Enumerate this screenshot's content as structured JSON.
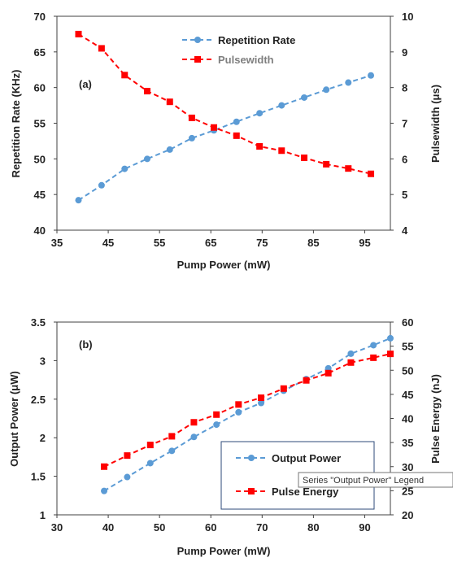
{
  "colors": {
    "blue": "#5B9BD5",
    "red": "#FF0000",
    "axis": "#404040",
    "legend_border": "#2E4A7A",
    "tooltip_bg": "#FFFFFF"
  },
  "tooltip": {
    "text": "Series \"Output Power\" Legend"
  },
  "chart_data": [
    {
      "type": "line",
      "panel_label": "(a)",
      "xlabel": "Pump Power (mW)",
      "ylabel": "Repetition Rate (KHz)",
      "ylabel_right": "Pulsewidth (μs)",
      "xlim": [
        35,
        100
      ],
      "xticks": [
        35,
        45,
        55,
        65,
        75,
        85,
        95
      ],
      "ylim": [
        40,
        70
      ],
      "yticks": [
        40,
        45,
        50,
        55,
        60,
        65,
        70
      ],
      "ylim_right": [
        4,
        10
      ],
      "yticks_right": [
        4,
        5,
        6,
        7,
        8,
        9,
        10
      ],
      "grid": false,
      "legend_position": "top-right",
      "series": [
        {
          "name": "Repetition Rate",
          "axis": "left",
          "marker": "circle",
          "color": "#5B9BD5",
          "x": [
            39.2,
            43.7,
            48.2,
            52.6,
            57.0,
            61.3,
            65.6,
            70.0,
            74.5,
            78.8,
            83.2,
            87.5,
            91.8,
            96.2
          ],
          "y": [
            44.2,
            46.3,
            48.6,
            50.0,
            51.3,
            52.9,
            54.0,
            55.2,
            56.4,
            57.5,
            58.6,
            59.7,
            60.7,
            61.7
          ]
        },
        {
          "name": "Pulsewidth",
          "axis": "right",
          "marker": "square",
          "color": "#FF0000",
          "x": [
            39.2,
            43.7,
            48.2,
            52.6,
            57.0,
            61.3,
            65.6,
            70.0,
            74.5,
            78.8,
            83.2,
            87.5,
            91.8,
            96.2
          ],
          "y": [
            9.5,
            9.1,
            8.35,
            7.9,
            7.6,
            7.15,
            6.88,
            6.65,
            6.35,
            6.23,
            6.03,
            5.85,
            5.73,
            5.58
          ]
        }
      ]
    },
    {
      "type": "line",
      "panel_label": "(b)",
      "xlabel": "Pump Power (mW)",
      "ylabel": "Output Power (μW)",
      "ylabel_right": "Pulse Energy (nJ)",
      "xlim": [
        30,
        95
      ],
      "xticks": [
        30,
        40,
        50,
        60,
        70,
        80,
        90
      ],
      "ylim": [
        1,
        3.5
      ],
      "yticks": [
        "1",
        "1.5",
        "2",
        "2.5",
        "3",
        "3.5"
      ],
      "ylim_right": [
        20,
        60
      ],
      "yticks_right": [
        20,
        25,
        30,
        35,
        40,
        45,
        50,
        55,
        60
      ],
      "grid": false,
      "legend_position": "bottom-right",
      "legend_labels": [
        "Output Power",
        "Pulse Energy"
      ],
      "series": [
        {
          "name": "Output Power",
          "axis": "left",
          "marker": "circle",
          "color": "#5B9BD5",
          "x": [
            39.2,
            43.7,
            48.2,
            52.4,
            56.7,
            61.1,
            65.4,
            69.8,
            74.2,
            78.6,
            82.9,
            87.3,
            91.7,
            95
          ],
          "y": [
            1.31,
            1.49,
            1.67,
            1.83,
            2.01,
            2.17,
            2.33,
            2.45,
            2.61,
            2.76,
            2.9,
            3.09,
            3.2,
            3.29
          ]
        },
        {
          "name": "Pulse Energy",
          "axis": "right",
          "marker": "square",
          "color": "#FF0000",
          "x": [
            39.2,
            43.7,
            48.2,
            52.4,
            56.7,
            61.1,
            65.4,
            69.8,
            74.2,
            78.6,
            82.9,
            87.3,
            91.7,
            95
          ],
          "y": [
            30.0,
            32.3,
            34.5,
            36.3,
            39.2,
            40.8,
            42.9,
            44.3,
            46.2,
            47.9,
            49.4,
            51.6,
            52.6,
            53.4
          ]
        }
      ]
    }
  ]
}
